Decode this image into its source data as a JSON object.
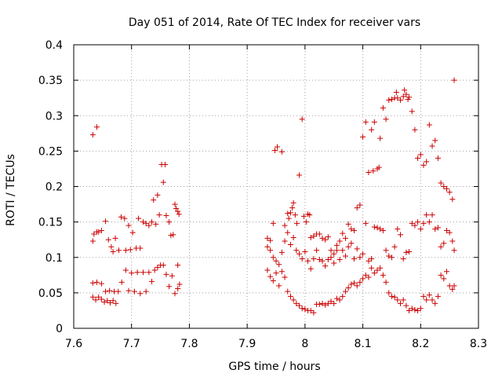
{
  "chart_data": {
    "type": "scatter",
    "title": "Day 051 of 2014, Rate Of TEC Index for receiver vars",
    "xlabel": "GPS time / hours",
    "ylabel": "ROTI / TECUs",
    "xlim": [
      7.6,
      8.3
    ],
    "ylim": [
      0,
      0.4
    ],
    "x_ticks": [
      7.6,
      7.7,
      7.8,
      7.9,
      8.0,
      8.1,
      8.2,
      8.3
    ],
    "x_tick_labels": [
      "7.6",
      "7.7",
      "7.8",
      "7.9",
      "8",
      "8.1",
      "8.2",
      "8.3"
    ],
    "y_ticks": [
      0,
      0.05,
      0.1,
      0.15,
      0.2,
      0.25,
      0.3,
      0.35,
      0.4
    ],
    "y_tick_labels": [
      "0",
      "0.05",
      "0.1",
      "0.15",
      "0.2",
      "0.25",
      "0.3",
      "0.35",
      "0.4"
    ],
    "grid": true,
    "marker": "+",
    "color": "#cc0000",
    "points": [
      [
        7.633,
        0.273
      ],
      [
        7.64,
        0.284
      ],
      [
        7.633,
        0.123
      ],
      [
        7.635,
        0.133
      ],
      [
        7.64,
        0.136
      ],
      [
        7.643,
        0.136
      ],
      [
        7.648,
        0.138
      ],
      [
        7.655,
        0.151
      ],
      [
        7.66,
        0.125
      ],
      [
        7.665,
        0.115
      ],
      [
        7.668,
        0.108
      ],
      [
        7.672,
        0.127
      ],
      [
        7.678,
        0.11
      ],
      [
        7.682,
        0.157
      ],
      [
        7.688,
        0.155
      ],
      [
        7.69,
        0.11
      ],
      [
        7.695,
        0.145
      ],
      [
        7.698,
        0.111
      ],
      [
        7.702,
        0.135
      ],
      [
        7.708,
        0.113
      ],
      [
        7.712,
        0.155
      ],
      [
        7.715,
        0.113
      ],
      [
        7.72,
        0.15
      ],
      [
        7.725,
        0.148
      ],
      [
        7.73,
        0.145
      ],
      [
        7.735,
        0.15
      ],
      [
        7.738,
        0.181
      ],
      [
        7.742,
        0.147
      ],
      [
        7.745,
        0.188
      ],
      [
        7.748,
        0.16
      ],
      [
        7.752,
        0.231
      ],
      [
        7.755,
        0.206
      ],
      [
        7.758,
        0.231
      ],
      [
        7.76,
        0.159
      ],
      [
        7.765,
        0.15
      ],
      [
        7.768,
        0.131
      ],
      [
        7.772,
        0.132
      ],
      [
        7.775,
        0.175
      ],
      [
        7.777,
        0.169
      ],
      [
        7.78,
        0.165
      ],
      [
        7.782,
        0.161
      ],
      [
        7.633,
        0.064
      ],
      [
        7.64,
        0.065
      ],
      [
        7.648,
        0.063
      ],
      [
        7.655,
        0.052
      ],
      [
        7.662,
        0.053
      ],
      [
        7.67,
        0.052
      ],
      [
        7.677,
        0.052
      ],
      [
        7.683,
        0.065
      ],
      [
        7.69,
        0.082
      ],
      [
        7.695,
        0.053
      ],
      [
        7.7,
        0.078
      ],
      [
        7.705,
        0.052
      ],
      [
        7.71,
        0.079
      ],
      [
        7.715,
        0.049
      ],
      [
        7.72,
        0.079
      ],
      [
        7.725,
        0.052
      ],
      [
        7.73,
        0.079
      ],
      [
        7.735,
        0.066
      ],
      [
        7.74,
        0.082
      ],
      [
        7.745,
        0.086
      ],
      [
        7.75,
        0.089
      ],
      [
        7.755,
        0.089
      ],
      [
        7.76,
        0.076
      ],
      [
        7.765,
        0.059
      ],
      [
        7.77,
        0.074
      ],
      [
        7.775,
        0.049
      ],
      [
        7.78,
        0.056
      ],
      [
        7.783,
        0.062
      ],
      [
        7.78,
        0.089
      ],
      [
        7.633,
        0.044
      ],
      [
        7.638,
        0.04
      ],
      [
        7.643,
        0.044
      ],
      [
        7.648,
        0.041
      ],
      [
        7.653,
        0.037
      ],
      [
        7.658,
        0.039
      ],
      [
        7.663,
        0.036
      ],
      [
        7.668,
        0.039
      ],
      [
        7.673,
        0.035
      ],
      [
        7.935,
        0.127
      ],
      [
        7.94,
        0.124
      ],
      [
        7.945,
        0.148
      ],
      [
        7.948,
        0.251
      ],
      [
        7.952,
        0.256
      ],
      [
        7.96,
        0.249
      ],
      [
        7.965,
        0.145
      ],
      [
        7.97,
        0.162
      ],
      [
        7.972,
        0.155
      ],
      [
        7.975,
        0.163
      ],
      [
        7.978,
        0.17
      ],
      [
        7.98,
        0.177
      ],
      [
        7.983,
        0.16
      ],
      [
        7.986,
        0.148
      ],
      [
        7.99,
        0.216
      ],
      [
        7.995,
        0.295
      ],
      [
        7.998,
        0.158
      ],
      [
        8.002,
        0.15
      ],
      [
        8.005,
        0.161
      ],
      [
        8.008,
        0.16
      ],
      [
        8.01,
        0.128
      ],
      [
        8.015,
        0.13
      ],
      [
        8.02,
        0.133
      ],
      [
        8.025,
        0.133
      ],
      [
        8.03,
        0.127
      ],
      [
        8.035,
        0.125
      ],
      [
        8.04,
        0.129
      ],
      [
        8.045,
        0.1
      ],
      [
        8.05,
        0.105
      ],
      [
        8.055,
        0.117
      ],
      [
        8.06,
        0.123
      ],
      [
        8.065,
        0.134
      ],
      [
        8.07,
        0.127
      ],
      [
        8.075,
        0.147
      ],
      [
        8.08,
        0.14
      ],
      [
        8.085,
        0.138
      ],
      [
        8.09,
        0.17
      ],
      [
        8.095,
        0.174
      ],
      [
        8.1,
        0.27
      ],
      [
        8.105,
        0.291
      ],
      [
        8.11,
        0.22
      ],
      [
        8.115,
        0.28
      ],
      [
        8.118,
        0.222
      ],
      [
        8.12,
        0.291
      ],
      [
        8.125,
        0.225
      ],
      [
        8.128,
        0.227
      ],
      [
        8.13,
        0.268
      ],
      [
        8.135,
        0.311
      ],
      [
        8.14,
        0.295
      ],
      [
        8.145,
        0.322
      ],
      [
        8.15,
        0.323
      ],
      [
        8.155,
        0.325
      ],
      [
        8.158,
        0.333
      ],
      [
        8.16,
        0.325
      ],
      [
        8.165,
        0.322
      ],
      [
        8.17,
        0.327
      ],
      [
        8.172,
        0.336
      ],
      [
        8.175,
        0.33
      ],
      [
        8.178,
        0.323
      ],
      [
        8.18,
        0.326
      ],
      [
        8.185,
        0.306
      ],
      [
        8.19,
        0.28
      ],
      [
        8.195,
        0.24
      ],
      [
        8.2,
        0.245
      ],
      [
        8.205,
        0.23
      ],
      [
        8.21,
        0.235
      ],
      [
        8.215,
        0.287
      ],
      [
        8.22,
        0.257
      ],
      [
        8.225,
        0.265
      ],
      [
        8.23,
        0.24
      ],
      [
        8.235,
        0.205
      ],
      [
        8.24,
        0.2
      ],
      [
        8.245,
        0.197
      ],
      [
        8.25,
        0.192
      ],
      [
        8.255,
        0.182
      ],
      [
        8.258,
        0.35
      ],
      [
        7.935,
        0.115
      ],
      [
        7.94,
        0.11
      ],
      [
        7.945,
        0.1
      ],
      [
        7.95,
        0.095
      ],
      [
        7.955,
        0.09
      ],
      [
        7.96,
        0.107
      ],
      [
        7.965,
        0.123
      ],
      [
        7.97,
        0.135
      ],
      [
        7.975,
        0.118
      ],
      [
        7.98,
        0.128
      ],
      [
        7.985,
        0.11
      ],
      [
        7.99,
        0.105
      ],
      [
        7.995,
        0.098
      ],
      [
        8.0,
        0.108
      ],
      [
        8.005,
        0.095
      ],
      [
        8.01,
        0.084
      ],
      [
        8.015,
        0.098
      ],
      [
        8.02,
        0.11
      ],
      [
        8.025,
        0.097
      ],
      [
        8.03,
        0.095
      ],
      [
        8.035,
        0.088
      ],
      [
        8.04,
        0.097
      ],
      [
        8.045,
        0.11
      ],
      [
        8.05,
        0.092
      ],
      [
        8.055,
        0.11
      ],
      [
        8.06,
        0.097
      ],
      [
        8.065,
        0.11
      ],
      [
        8.07,
        0.102
      ],
      [
        8.075,
        0.115
      ],
      [
        8.08,
        0.12
      ],
      [
        8.085,
        0.098
      ],
      [
        8.09,
        0.112
      ],
      [
        8.095,
        0.1
      ],
      [
        8.1,
        0.105
      ],
      [
        8.105,
        0.148
      ],
      [
        8.11,
        0.095
      ],
      [
        8.115,
        0.098
      ],
      [
        8.12,
        0.143
      ],
      [
        8.125,
        0.142
      ],
      [
        8.13,
        0.14
      ],
      [
        8.135,
        0.138
      ],
      [
        8.14,
        0.11
      ],
      [
        8.145,
        0.102
      ],
      [
        8.15,
        0.1
      ],
      [
        8.155,
        0.115
      ],
      [
        8.16,
        0.14
      ],
      [
        8.165,
        0.132
      ],
      [
        8.17,
        0.098
      ],
      [
        8.175,
        0.107
      ],
      [
        8.18,
        0.108
      ],
      [
        8.185,
        0.148
      ],
      [
        8.19,
        0.145
      ],
      [
        8.195,
        0.15
      ],
      [
        8.2,
        0.14
      ],
      [
        8.205,
        0.148
      ],
      [
        8.21,
        0.16
      ],
      [
        8.215,
        0.15
      ],
      [
        8.22,
        0.16
      ],
      [
        8.225,
        0.14
      ],
      [
        8.23,
        0.142
      ],
      [
        8.235,
        0.115
      ],
      [
        8.24,
        0.12
      ],
      [
        8.245,
        0.138
      ],
      [
        8.25,
        0.135
      ],
      [
        8.255,
        0.123
      ],
      [
        8.258,
        0.11
      ],
      [
        7.935,
        0.082
      ],
      [
        7.94,
        0.073
      ],
      [
        7.945,
        0.067
      ],
      [
        7.95,
        0.078
      ],
      [
        7.955,
        0.06
      ],
      [
        7.96,
        0.08
      ],
      [
        7.965,
        0.072
      ],
      [
        7.97,
        0.052
      ],
      [
        7.975,
        0.045
      ],
      [
        7.98,
        0.04
      ],
      [
        7.985,
        0.035
      ],
      [
        7.99,
        0.032
      ],
      [
        7.995,
        0.028
      ],
      [
        8.0,
        0.027
      ],
      [
        8.005,
        0.025
      ],
      [
        8.01,
        0.025
      ],
      [
        8.015,
        0.022
      ],
      [
        8.02,
        0.034
      ],
      [
        8.025,
        0.034
      ],
      [
        8.03,
        0.035
      ],
      [
        8.035,
        0.033
      ],
      [
        8.04,
        0.035
      ],
      [
        8.045,
        0.038
      ],
      [
        8.05,
        0.035
      ],
      [
        8.055,
        0.042
      ],
      [
        8.06,
        0.04
      ],
      [
        8.065,
        0.045
      ],
      [
        8.07,
        0.052
      ],
      [
        8.075,
        0.057
      ],
      [
        8.08,
        0.062
      ],
      [
        8.085,
        0.064
      ],
      [
        8.09,
        0.06
      ],
      [
        8.095,
        0.065
      ],
      [
        8.1,
        0.07
      ],
      [
        8.105,
        0.075
      ],
      [
        8.11,
        0.072
      ],
      [
        8.115,
        0.085
      ],
      [
        8.12,
        0.078
      ],
      [
        8.125,
        0.082
      ],
      [
        8.13,
        0.085
      ],
      [
        8.135,
        0.075
      ],
      [
        8.14,
        0.065
      ],
      [
        8.145,
        0.05
      ],
      [
        8.15,
        0.045
      ],
      [
        8.155,
        0.044
      ],
      [
        8.16,
        0.04
      ],
      [
        8.165,
        0.035
      ],
      [
        8.17,
        0.04
      ],
      [
        8.175,
        0.032
      ],
      [
        8.18,
        0.025
      ],
      [
        8.185,
        0.028
      ],
      [
        8.19,
        0.026
      ],
      [
        8.195,
        0.025
      ],
      [
        8.2,
        0.028
      ],
      [
        8.205,
        0.045
      ],
      [
        8.21,
        0.04
      ],
      [
        8.215,
        0.047
      ],
      [
        8.22,
        0.04
      ],
      [
        8.225,
        0.035
      ],
      [
        8.23,
        0.045
      ],
      [
        8.235,
        0.075
      ],
      [
        8.24,
        0.07
      ],
      [
        8.245,
        0.08
      ],
      [
        8.25,
        0.06
      ],
      [
        8.255,
        0.055
      ],
      [
        8.258,
        0.06
      ]
    ]
  }
}
